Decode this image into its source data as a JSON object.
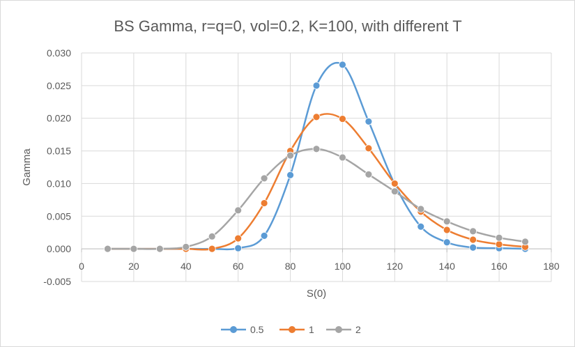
{
  "chart_data": {
    "type": "line",
    "title": "BS Gamma, r=q=0, vol=0.2, K=100, with different T",
    "xlabel": "S(0)",
    "ylabel": "Gamma",
    "xlim": [
      0,
      180
    ],
    "ylim": [
      -0.005,
      0.03
    ],
    "x_ticks": [
      0,
      20,
      40,
      60,
      80,
      100,
      120,
      140,
      160,
      180
    ],
    "y_ticks": [
      -0.005,
      0.0,
      0.005,
      0.01,
      0.015,
      0.02,
      0.025,
      0.03
    ],
    "x_tick_labels": [
      "0",
      "20",
      "40",
      "60",
      "80",
      "100",
      "120",
      "140",
      "160",
      "180"
    ],
    "y_tick_labels": [
      "-0.005",
      "0.000",
      "0.005",
      "0.010",
      "0.015",
      "0.020",
      "0.025",
      "0.030"
    ],
    "grid": true,
    "smooth": true,
    "legend_position": "bottom",
    "x": [
      10,
      20,
      30,
      40,
      50,
      60,
      70,
      80,
      90,
      100,
      110,
      120,
      130,
      140,
      150,
      160,
      170
    ],
    "series": [
      {
        "name": "0.5",
        "color": "#5B9BD5",
        "values": [
          0.0,
          0.0,
          0.0,
          0.0,
          0.0,
          0.0001,
          0.002,
          0.0113,
          0.025,
          0.0282,
          0.0195,
          0.0099,
          0.0034,
          0.001,
          0.0002,
          0.0001,
          0.0
        ]
      },
      {
        "name": "1",
        "color": "#ED7D31",
        "values": [
          0.0,
          0.0,
          0.0,
          0.0,
          0.0,
          0.0016,
          0.007,
          0.015,
          0.0202,
          0.0199,
          0.0154,
          0.01,
          0.0057,
          0.0029,
          0.0014,
          0.0007,
          0.0003
        ]
      },
      {
        "name": "2",
        "color": "#A5A5A5",
        "values": [
          0.0,
          0.0,
          0.0,
          0.0003,
          0.0019,
          0.0059,
          0.0108,
          0.0143,
          0.0153,
          0.014,
          0.0114,
          0.0088,
          0.0061,
          0.0042,
          0.0027,
          0.0017,
          0.0011
        ]
      }
    ]
  }
}
